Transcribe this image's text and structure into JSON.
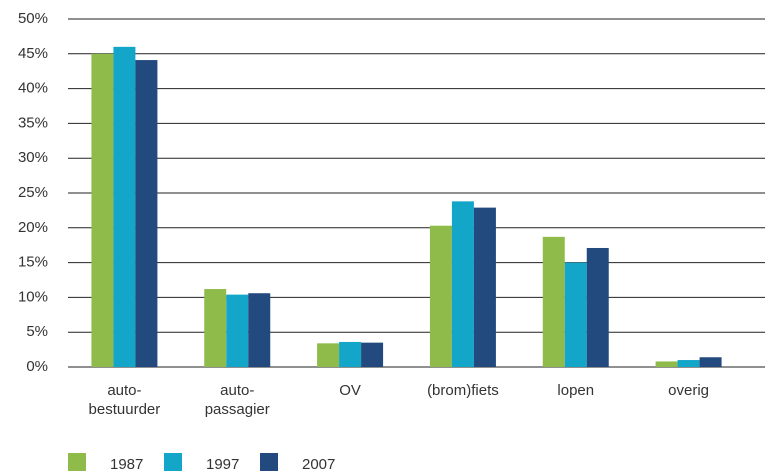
{
  "chart_data": {
    "type": "bar",
    "categories": [
      "auto-\nbestuurder",
      "auto-\npassagier",
      "OV",
      "(brom)fiets",
      "lopen",
      "overig"
    ],
    "series": [
      {
        "name": "1987",
        "color": "#8fbb4a",
        "values": [
          45,
          11.2,
          3.4,
          20.3,
          18.7,
          0.8
        ]
      },
      {
        "name": "1997",
        "color": "#13a6c9",
        "values": [
          46,
          10.4,
          3.6,
          23.8,
          15,
          1
        ]
      },
      {
        "name": "2007",
        "color": "#234a7e",
        "values": [
          44.1,
          10.6,
          3.5,
          22.9,
          17.1,
          1.4
        ]
      }
    ],
    "ylim": [
      0,
      50
    ],
    "yticks": [
      {
        "value": 0,
        "label": "0%"
      },
      {
        "value": 5,
        "label": "5%"
      },
      {
        "value": 10,
        "label": "10%"
      },
      {
        "value": 15,
        "label": "15%"
      },
      {
        "value": 20,
        "label": "20%"
      },
      {
        "value": 25,
        "label": "25%"
      },
      {
        "value": 30,
        "label": "30%"
      },
      {
        "value": 35,
        "label": "35%"
      },
      {
        "value": 40,
        "label": "40%"
      },
      {
        "value": 45,
        "label": "45%"
      },
      {
        "value": 50,
        "label": "50%"
      }
    ],
    "grid": true,
    "legend": "bottom-left"
  }
}
